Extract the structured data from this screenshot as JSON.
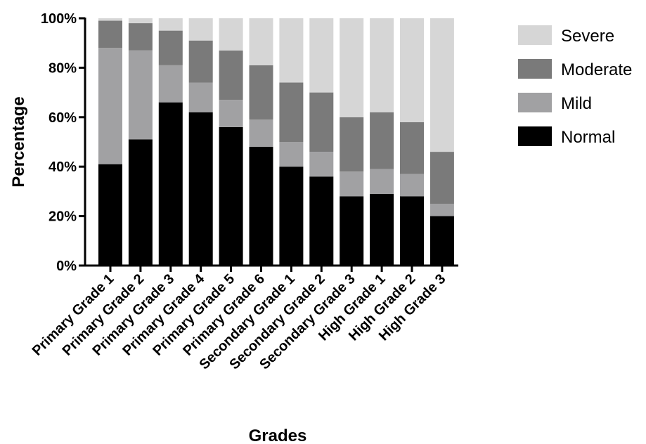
{
  "chart_data": {
    "type": "bar",
    "stacked": true,
    "percent_stacked": true,
    "title": "",
    "xlabel": "Grades",
    "ylabel": "Percentage",
    "ylim": [
      0,
      100
    ],
    "yticks": [
      "0%",
      "20%",
      "40%",
      "60%",
      "80%",
      "100%"
    ],
    "grid": false,
    "legend_position": "right",
    "categories": [
      "Primary Grade 1",
      "Primary Grade 2",
      "Primary Grade 3",
      "Primary Grade 4",
      "Primary Grade 5",
      "Primary Grade 6",
      "Secondary Grade 1",
      "Secondary Grade 2",
      "Secondary Grade 3",
      "High Grade 1",
      "High Grade 2",
      "High Grade 3"
    ],
    "series": [
      {
        "name": "Normal",
        "color": "#000000",
        "values": [
          41,
          51,
          66,
          62,
          56,
          48,
          40,
          36,
          28,
          29,
          28,
          20
        ]
      },
      {
        "name": "Mild",
        "color": "#a1a1a3",
        "values": [
          47,
          36,
          15,
          12,
          11,
          11,
          10,
          10,
          10,
          10,
          9,
          5
        ]
      },
      {
        "name": "Moderate",
        "color": "#7a7a7a",
        "values": [
          11,
          11,
          14,
          17,
          20,
          22,
          24,
          24,
          22,
          23,
          21,
          21
        ]
      },
      {
        "name": "Severe",
        "color": "#d6d6d6",
        "values": [
          1,
          2,
          5,
          9,
          13,
          19,
          26,
          30,
          40,
          38,
          42,
          54
        ]
      }
    ],
    "legend": [
      "Severe",
      "Moderate",
      "Mild",
      "Normal"
    ]
  }
}
